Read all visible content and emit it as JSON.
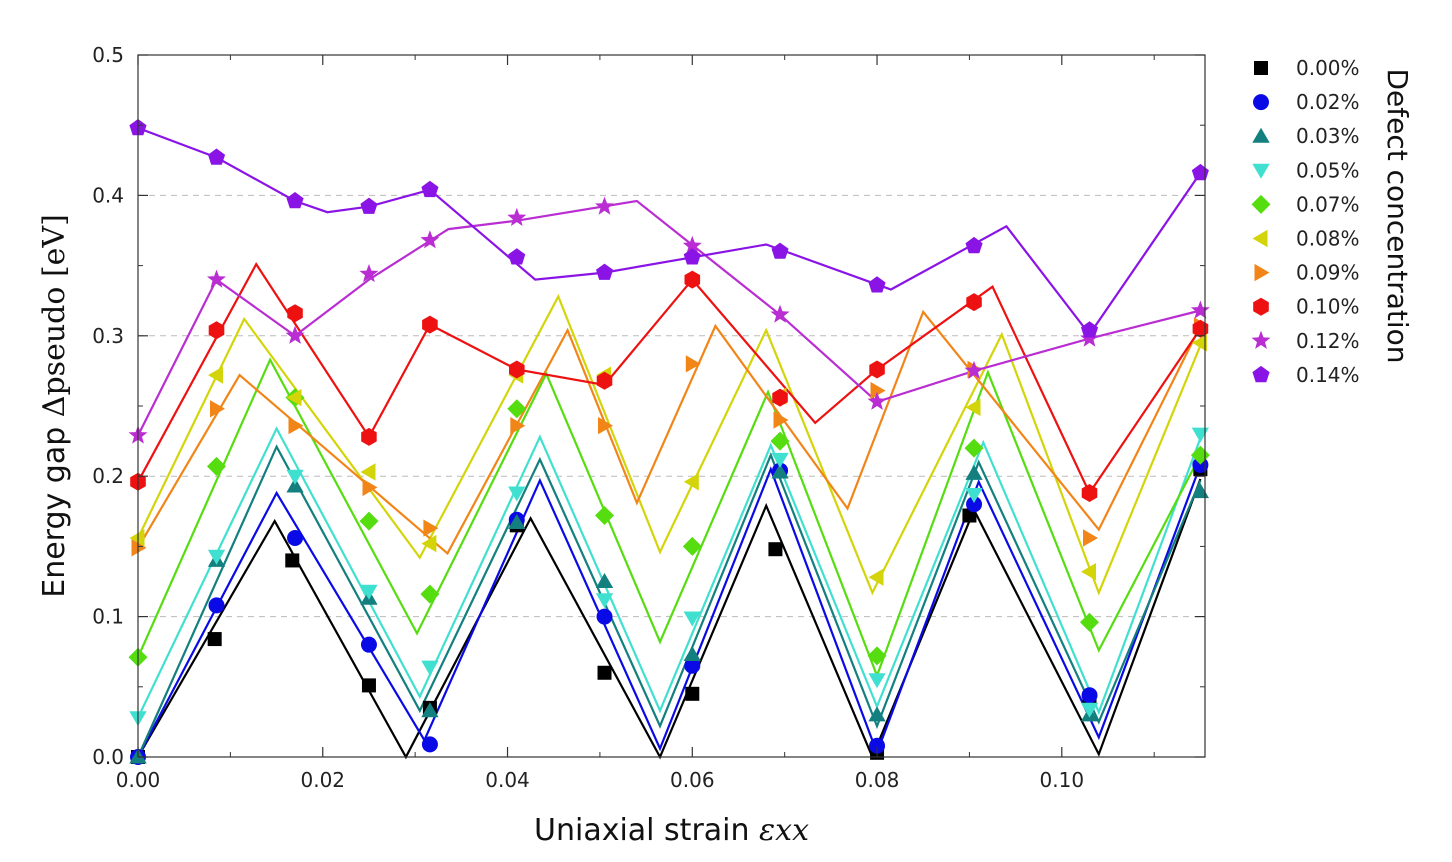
{
  "chart_data": {
    "type": "line",
    "xlabel_prefix": "Uniaxial strain ",
    "xlabel_math": "εxx",
    "ylabel_prefix": "Energy gap ",
    "ylabel_math": "Δpseudo [eV]",
    "legend_title": "Defect concentration",
    "legend_position": "right",
    "grid": "horizontal dashed",
    "xlim": [
      0.0,
      0.1155
    ],
    "ylim": [
      0.0,
      0.5
    ],
    "x_ticks": [
      0.0,
      0.02,
      0.04,
      0.06,
      0.08,
      0.1
    ],
    "x_tick_labels": [
      "0.00",
      "0.02",
      "0.04",
      "0.06",
      "0.08",
      "0.10"
    ],
    "y_ticks": [
      0.0,
      0.1,
      0.2,
      0.3,
      0.4,
      0.5
    ],
    "y_tick_labels": [
      "0.0",
      "0.1",
      "0.2",
      "0.3",
      "0.4",
      "0.5"
    ],
    "series": [
      {
        "name": "0.00%",
        "color": "#000000",
        "marker": "square",
        "points": [
          [
            0.0,
            0.0
          ],
          [
            0.0083,
            0.084
          ],
          [
            0.0167,
            0.14
          ],
          [
            0.025,
            0.051
          ],
          [
            0.0316,
            0.035
          ],
          [
            0.041,
            0.165
          ],
          [
            0.0505,
            0.06
          ],
          [
            0.06,
            0.045
          ],
          [
            0.069,
            0.148
          ],
          [
            0.08,
            0.003
          ],
          [
            0.09,
            0.172
          ],
          [
            0.103,
            0.042
          ],
          [
            0.115,
            0.205
          ]
        ],
        "line": [
          [
            0.0,
            0.0
          ],
          [
            0.0148,
            0.168
          ],
          [
            0.029,
            0.0
          ],
          [
            0.0425,
            0.17
          ],
          [
            0.0565,
            0.0
          ],
          [
            0.068,
            0.179
          ],
          [
            0.0795,
            0.0
          ],
          [
            0.0905,
            0.176
          ],
          [
            0.104,
            0.002
          ],
          [
            0.115,
            0.198
          ]
        ]
      },
      {
        "name": "0.02%",
        "color": "#0a0ae6",
        "marker": "circle",
        "points": [
          [
            0.0,
            0.0
          ],
          [
            0.0085,
            0.108
          ],
          [
            0.017,
            0.156
          ],
          [
            0.025,
            0.08
          ],
          [
            0.0316,
            0.009
          ],
          [
            0.041,
            0.169
          ],
          [
            0.0505,
            0.1
          ],
          [
            0.06,
            0.065
          ],
          [
            0.0695,
            0.204
          ],
          [
            0.08,
            0.008
          ],
          [
            0.0905,
            0.18
          ],
          [
            0.103,
            0.044
          ],
          [
            0.115,
            0.208
          ]
        ],
        "line": [
          [
            0.0,
            0.0
          ],
          [
            0.015,
            0.188
          ],
          [
            0.031,
            0.012
          ],
          [
            0.0435,
            0.197
          ],
          [
            0.0565,
            0.006
          ],
          [
            0.0685,
            0.205
          ],
          [
            0.08,
            0.003
          ],
          [
            0.091,
            0.196
          ],
          [
            0.104,
            0.014
          ],
          [
            0.115,
            0.208
          ]
        ]
      },
      {
        "name": "0.03%",
        "color": "#137f7f",
        "marker": "triangle-up",
        "points": [
          [
            0.0,
            0.0
          ],
          [
            0.0085,
            0.14
          ],
          [
            0.017,
            0.193
          ],
          [
            0.025,
            0.113
          ],
          [
            0.0316,
            0.033
          ],
          [
            0.041,
            0.167
          ],
          [
            0.0505,
            0.125
          ],
          [
            0.06,
            0.073
          ],
          [
            0.0695,
            0.203
          ],
          [
            0.08,
            0.03
          ],
          [
            0.0905,
            0.202
          ],
          [
            0.103,
            0.03
          ],
          [
            0.115,
            0.189
          ]
        ],
        "line": [
          [
            0.0,
            0.0
          ],
          [
            0.015,
            0.221
          ],
          [
            0.0305,
            0.033
          ],
          [
            0.0435,
            0.212
          ],
          [
            0.0565,
            0.022
          ],
          [
            0.0685,
            0.215
          ],
          [
            0.08,
            0.022
          ],
          [
            0.091,
            0.21
          ],
          [
            0.104,
            0.025
          ],
          [
            0.115,
            0.197
          ]
        ]
      },
      {
        "name": "0.05%",
        "color": "#40e0d0",
        "marker": "triangle-down",
        "points": [
          [
            0.0,
            0.028
          ],
          [
            0.0085,
            0.143
          ],
          [
            0.017,
            0.2
          ],
          [
            0.025,
            0.118
          ],
          [
            0.0316,
            0.064
          ],
          [
            0.041,
            0.188
          ],
          [
            0.0505,
            0.112
          ],
          [
            0.06,
            0.099
          ],
          [
            0.0695,
            0.212
          ],
          [
            0.08,
            0.055
          ],
          [
            0.0905,
            0.187
          ],
          [
            0.103,
            0.034
          ],
          [
            0.115,
            0.23
          ]
        ],
        "line": [
          [
            0.0,
            0.028
          ],
          [
            0.015,
            0.234
          ],
          [
            0.0305,
            0.043
          ],
          [
            0.0435,
            0.228
          ],
          [
            0.0565,
            0.033
          ],
          [
            0.0685,
            0.222
          ],
          [
            0.08,
            0.036
          ],
          [
            0.0915,
            0.224
          ],
          [
            0.104,
            0.032
          ],
          [
            0.115,
            0.227
          ]
        ]
      },
      {
        "name": "0.07%",
        "color": "#55dd10",
        "marker": "diamond",
        "points": [
          [
            0.0,
            0.071
          ],
          [
            0.0085,
            0.207
          ],
          [
            0.017,
            0.256
          ],
          [
            0.025,
            0.168
          ],
          [
            0.0316,
            0.116
          ],
          [
            0.041,
            0.248
          ],
          [
            0.0505,
            0.172
          ],
          [
            0.06,
            0.15
          ],
          [
            0.0695,
            0.225
          ],
          [
            0.08,
            0.072
          ],
          [
            0.0905,
            0.22
          ],
          [
            0.103,
            0.096
          ],
          [
            0.115,
            0.215
          ]
        ],
        "line": [
          [
            0.0,
            0.071
          ],
          [
            0.0143,
            0.283
          ],
          [
            0.0302,
            0.088
          ],
          [
            0.0442,
            0.273
          ],
          [
            0.0565,
            0.082
          ],
          [
            0.0682,
            0.26
          ],
          [
            0.08,
            0.058
          ],
          [
            0.092,
            0.274
          ],
          [
            0.104,
            0.076
          ],
          [
            0.115,
            0.215
          ]
        ]
      },
      {
        "name": "0.08%",
        "color": "#d4d40a",
        "marker": "triangle-left",
        "points": [
          [
            0.0,
            0.156
          ],
          [
            0.0085,
            0.272
          ],
          [
            0.017,
            0.256
          ],
          [
            0.025,
            0.203
          ],
          [
            0.0316,
            0.152
          ],
          [
            0.041,
            0.272
          ],
          [
            0.0505,
            0.272
          ],
          [
            0.06,
            0.196
          ],
          [
            0.0695,
            0.257
          ],
          [
            0.08,
            0.128
          ],
          [
            0.0905,
            0.249
          ],
          [
            0.103,
            0.132
          ],
          [
            0.115,
            0.295
          ]
        ],
        "line": [
          [
            0.0,
            0.156
          ],
          [
            0.0115,
            0.312
          ],
          [
            0.0305,
            0.142
          ],
          [
            0.0455,
            0.328
          ],
          [
            0.0565,
            0.146
          ],
          [
            0.068,
            0.304
          ],
          [
            0.0795,
            0.117
          ],
          [
            0.0935,
            0.301
          ],
          [
            0.104,
            0.117
          ],
          [
            0.115,
            0.293
          ]
        ]
      },
      {
        "name": "0.09%",
        "color": "#f28518",
        "marker": "triangle-right",
        "points": [
          [
            0.0,
            0.149
          ],
          [
            0.0085,
            0.248
          ],
          [
            0.017,
            0.236
          ],
          [
            0.025,
            0.192
          ],
          [
            0.0316,
            0.163
          ],
          [
            0.041,
            0.236
          ],
          [
            0.0505,
            0.236
          ],
          [
            0.06,
            0.28
          ],
          [
            0.0695,
            0.24
          ],
          [
            0.08,
            0.261
          ],
          [
            0.0905,
            0.276
          ],
          [
            0.103,
            0.156
          ],
          [
            0.115,
            0.307
          ]
        ],
        "line": [
          [
            0.0,
            0.149
          ],
          [
            0.011,
            0.272
          ],
          [
            0.0335,
            0.145
          ],
          [
            0.0465,
            0.304
          ],
          [
            0.054,
            0.181
          ],
          [
            0.0625,
            0.307
          ],
          [
            0.0768,
            0.177
          ],
          [
            0.085,
            0.317
          ],
          [
            0.104,
            0.162
          ],
          [
            0.115,
            0.307
          ]
        ]
      },
      {
        "name": "0.10%",
        "color": "#ee1111",
        "marker": "hexagon",
        "points": [
          [
            0.0,
            0.196
          ],
          [
            0.0085,
            0.304
          ],
          [
            0.017,
            0.316
          ],
          [
            0.025,
            0.228
          ],
          [
            0.0316,
            0.308
          ],
          [
            0.041,
            0.276
          ],
          [
            0.0505,
            0.268
          ],
          [
            0.06,
            0.34
          ],
          [
            0.0695,
            0.256
          ],
          [
            0.08,
            0.276
          ],
          [
            0.0905,
            0.324
          ],
          [
            0.103,
            0.188
          ],
          [
            0.115,
            0.305
          ]
        ],
        "line": [
          [
            0.0,
            0.196
          ],
          [
            0.0128,
            0.351
          ],
          [
            0.025,
            0.228
          ],
          [
            0.0316,
            0.308
          ],
          [
            0.041,
            0.276
          ],
          [
            0.0505,
            0.265
          ],
          [
            0.06,
            0.34
          ],
          [
            0.0733,
            0.238
          ],
          [
            0.08,
            0.276
          ],
          [
            0.0925,
            0.335
          ],
          [
            0.103,
            0.188
          ],
          [
            0.115,
            0.305
          ]
        ]
      },
      {
        "name": "0.12%",
        "color": "#b92dd2",
        "marker": "star",
        "points": [
          [
            0.0,
            0.229
          ],
          [
            0.0085,
            0.34
          ],
          [
            0.017,
            0.3
          ],
          [
            0.025,
            0.344
          ],
          [
            0.0316,
            0.368
          ],
          [
            0.041,
            0.384
          ],
          [
            0.0505,
            0.392
          ],
          [
            0.06,
            0.364
          ],
          [
            0.0695,
            0.315
          ],
          [
            0.08,
            0.253
          ],
          [
            0.0905,
            0.275
          ],
          [
            0.103,
            0.298
          ],
          [
            0.115,
            0.318
          ]
        ],
        "line": [
          [
            0.0,
            0.229
          ],
          [
            0.0085,
            0.34
          ],
          [
            0.017,
            0.3
          ],
          [
            0.025,
            0.34
          ],
          [
            0.0336,
            0.376
          ],
          [
            0.041,
            0.382
          ],
          [
            0.054,
            0.396
          ],
          [
            0.0695,
            0.315
          ],
          [
            0.08,
            0.253
          ],
          [
            0.0905,
            0.275
          ],
          [
            0.103,
            0.298
          ],
          [
            0.115,
            0.318
          ]
        ]
      },
      {
        "name": "0.14%",
        "color": "#8a14e6",
        "marker": "pentagon",
        "points": [
          [
            0.0,
            0.448
          ],
          [
            0.0085,
            0.427
          ],
          [
            0.017,
            0.396
          ],
          [
            0.025,
            0.392
          ],
          [
            0.0316,
            0.404
          ],
          [
            0.041,
            0.356
          ],
          [
            0.0505,
            0.345
          ],
          [
            0.06,
            0.356
          ],
          [
            0.0695,
            0.36
          ],
          [
            0.08,
            0.336
          ],
          [
            0.0905,
            0.364
          ],
          [
            0.103,
            0.304
          ],
          [
            0.115,
            0.416
          ]
        ],
        "line": [
          [
            0.0,
            0.448
          ],
          [
            0.0085,
            0.427
          ],
          [
            0.017,
            0.396
          ],
          [
            0.0205,
            0.388
          ],
          [
            0.025,
            0.392
          ],
          [
            0.0316,
            0.404
          ],
          [
            0.043,
            0.34
          ],
          [
            0.0505,
            0.345
          ],
          [
            0.068,
            0.365
          ],
          [
            0.0815,
            0.333
          ],
          [
            0.094,
            0.378
          ],
          [
            0.103,
            0.301
          ],
          [
            0.115,
            0.416
          ]
        ]
      }
    ]
  }
}
